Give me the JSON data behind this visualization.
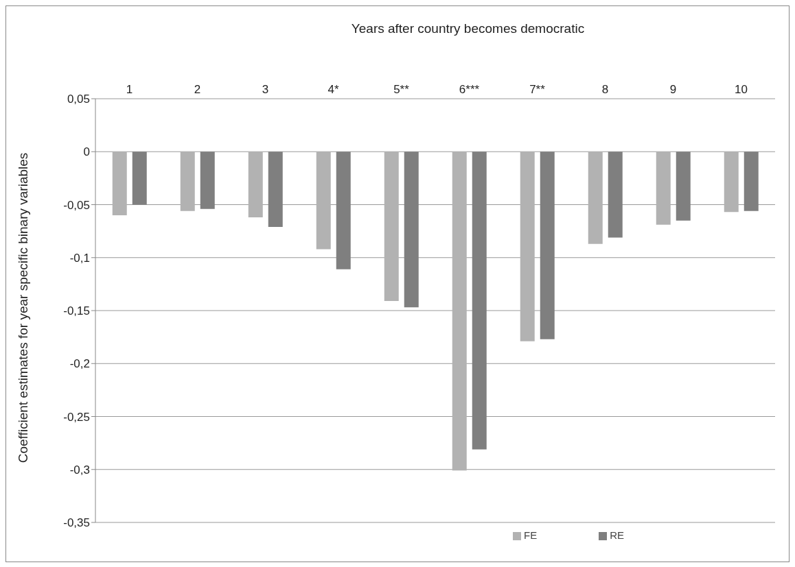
{
  "chart_data": {
    "type": "bar",
    "xlabel": "Years after country becomes democratic",
    "ylabel": "Coefficient estimates for year specific binary  variables",
    "categories": [
      "1",
      "2",
      "3",
      "4*",
      "5**",
      "6***",
      "7**",
      "8",
      "9",
      "10"
    ],
    "series": [
      {
        "name": "FE",
        "color": "#b2b2b2",
        "values": [
          -0.06,
          -0.056,
          -0.062,
          -0.092,
          -0.141,
          -0.301,
          -0.179,
          -0.087,
          -0.069,
          -0.057
        ]
      },
      {
        "name": "RE",
        "color": "#7f7f7f",
        "values": [
          -0.05,
          -0.054,
          -0.071,
          -0.111,
          -0.147,
          -0.281,
          -0.177,
          -0.081,
          -0.065,
          -0.056
        ]
      }
    ],
    "ylim": [
      -0.35,
      0.05
    ],
    "yticks": [
      {
        "value": 0.05,
        "label": "0,05"
      },
      {
        "value": 0,
        "label": "0"
      },
      {
        "value": -0.05,
        "label": "-0,05"
      },
      {
        "value": -0.1,
        "label": "-0,1"
      },
      {
        "value": -0.15,
        "label": "-0,15"
      },
      {
        "value": -0.2,
        "label": "-0,2"
      },
      {
        "value": -0.25,
        "label": "-0,25"
      },
      {
        "value": -0.3,
        "label": "-0,3"
      },
      {
        "value": -0.35,
        "label": "-0,35"
      }
    ],
    "grid": "y",
    "legend": "bottom right"
  }
}
